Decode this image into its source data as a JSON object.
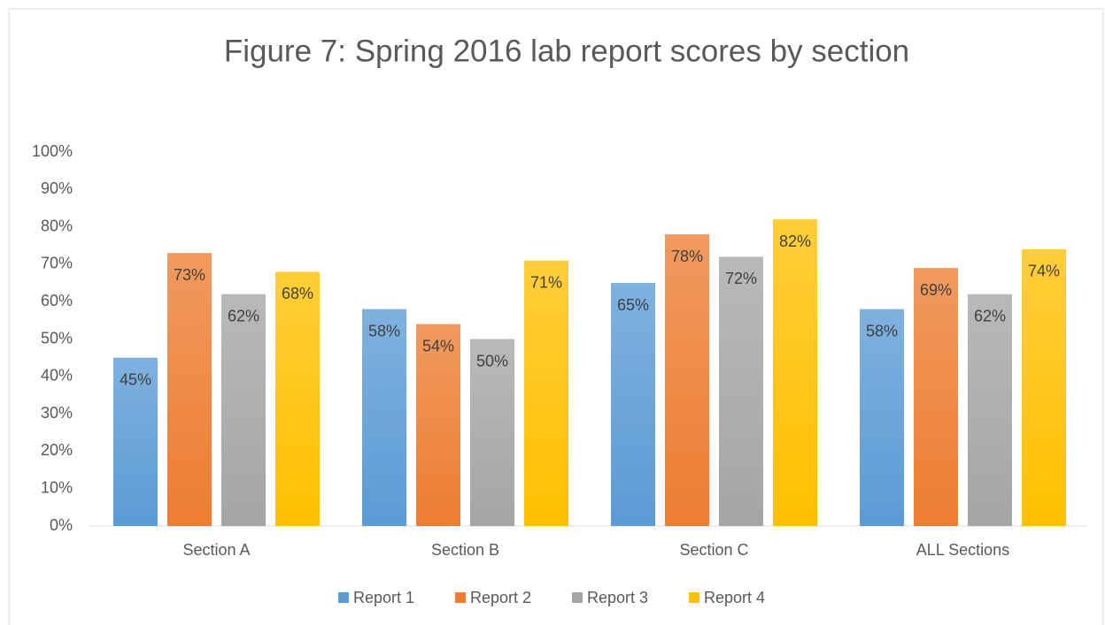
{
  "chart_data": {
    "type": "bar",
    "title": "Figure 7:  Spring 2016 lab report scores by section",
    "categories": [
      "Section A",
      "Section B",
      "Section C",
      "ALL Sections"
    ],
    "series": [
      {
        "name": "Report 1",
        "color": "#5b9bd5",
        "values": [
          45,
          58,
          65,
          58
        ],
        "value_labels": [
          "45%",
          "58%",
          "65%",
          "58%"
        ]
      },
      {
        "name": "Report 2",
        "color": "#ed7d31",
        "values": [
          73,
          54,
          78,
          69
        ],
        "value_labels": [
          "73%",
          "54%",
          "78%",
          "69%"
        ]
      },
      {
        "name": "Report 3",
        "color": "#a5a5a5",
        "values": [
          62,
          50,
          72,
          62
        ],
        "value_labels": [
          "62%",
          "50%",
          "72%",
          "62%"
        ]
      },
      {
        "name": "Report 4",
        "color": "#ffc000",
        "values": [
          68,
          71,
          82,
          74
        ],
        "value_labels": [
          "68%",
          "71%",
          "82%",
          "74%"
        ]
      }
    ],
    "ylim": [
      0,
      100
    ],
    "yticks": [
      {
        "value": 0,
        "label": "0%"
      },
      {
        "value": 10,
        "label": "10%"
      },
      {
        "value": 20,
        "label": "20%"
      },
      {
        "value": 30,
        "label": "30%"
      },
      {
        "value": 40,
        "label": "40%"
      },
      {
        "value": 50,
        "label": "50%"
      },
      {
        "value": 60,
        "label": "60%"
      },
      {
        "value": 70,
        "label": "70%"
      },
      {
        "value": 80,
        "label": "80%"
      },
      {
        "value": 90,
        "label": "90%"
      },
      {
        "value": 100,
        "label": "100%"
      }
    ],
    "grid": false,
    "legend": "bottom"
  }
}
